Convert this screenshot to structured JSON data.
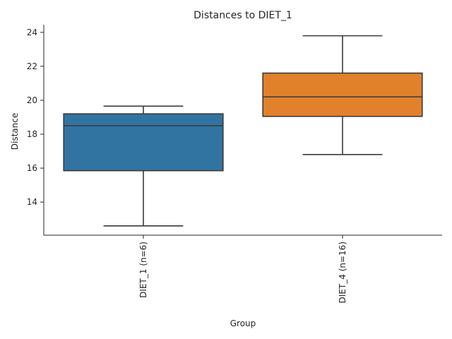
{
  "chart_data": {
    "type": "box",
    "title": "Distances to DIET_1",
    "xlabel": "Group",
    "ylabel": "Distance",
    "ylim": [
      12.05,
      24.45
    ],
    "yticks": [
      14,
      16,
      18,
      20,
      22,
      24
    ],
    "categories": [
      "DIET_1 (n=6)",
      "DIET_4 (n=16)"
    ],
    "boxes": [
      {
        "name": "DIET_1 (n=6)",
        "whislo": 12.6,
        "q1": 15.85,
        "med": 18.5,
        "q3": 19.2,
        "whishi": 19.65,
        "color": "#3274a1"
      },
      {
        "name": "DIET_4 (n=16)",
        "whislo": 16.8,
        "q1": 19.05,
        "med": 20.2,
        "q3": 21.6,
        "whishi": 23.8,
        "color": "#e1812c"
      }
    ]
  }
}
